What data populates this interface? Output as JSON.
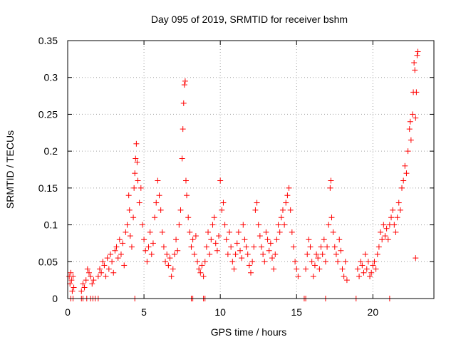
{
  "chart_data": {
    "type": "scatter",
    "title": "Day 095 of 2019, SRMTID for receiver bshm",
    "xlabel": "GPS time / hours",
    "ylabel": "SRMTID / TECUs",
    "xlim": [
      0,
      24
    ],
    "ylim": [
      0,
      0.35
    ],
    "xticks": [
      0,
      5,
      10,
      15,
      20
    ],
    "xtick_labels": [
      "0",
      "5",
      "10",
      "15",
      "20"
    ],
    "yticks": [
      0,
      0.05,
      0.1,
      0.15,
      0.2,
      0.25,
      0.3,
      0.35
    ],
    "ytick_labels": [
      "0",
      "0.05",
      "0.1",
      "0.15",
      "0.2",
      "0.25",
      "0.3",
      "0.35"
    ],
    "grid": true,
    "marker": "+",
    "series": [
      {
        "name": "SRMTID",
        "color": "#ff0000",
        "description_of_trend": "baseline ~0.03-0.08 TECU, peaks near 4.5 h (~0.21), 7.6 h (~0.30), 14.5 h (~0.15), rising sharply after 21 h to ~0.33 at 22.9 h",
        "points": [
          [
            0.1,
            0.03
          ],
          [
            0.15,
            0.02
          ],
          [
            0.2,
            0.035
          ],
          [
            0.25,
            0.025
          ],
          [
            0.3,
            0.01
          ],
          [
            0.35,
            0.03
          ],
          [
            0.4,
            0.015
          ],
          [
            0.9,
            0.01
          ],
          [
            1.0,
            0.02
          ],
          [
            1.1,
            0.015
          ],
          [
            1.2,
            0.025
          ],
          [
            1.3,
            0.04
          ],
          [
            1.4,
            0.035
          ],
          [
            1.5,
            0.03
          ],
          [
            1.6,
            0.02
          ],
          [
            1.7,
            0.025
          ],
          [
            2.0,
            0.03
          ],
          [
            2.1,
            0.04
          ],
          [
            2.2,
            0.035
          ],
          [
            2.3,
            0.05
          ],
          [
            2.4,
            0.045
          ],
          [
            2.5,
            0.03
          ],
          [
            2.6,
            0.055
          ],
          [
            2.7,
            0.04
          ],
          [
            2.8,
            0.06
          ],
          [
            2.9,
            0.05
          ],
          [
            3.0,
            0.035
          ],
          [
            3.1,
            0.065
          ],
          [
            3.2,
            0.07
          ],
          [
            3.3,
            0.055
          ],
          [
            3.4,
            0.08
          ],
          [
            3.5,
            0.06
          ],
          [
            3.6,
            0.075
          ],
          [
            3.7,
            0.045
          ],
          [
            3.8,
            0.09
          ],
          [
            3.9,
            0.1
          ],
          [
            4.0,
            0.14
          ],
          [
            4.05,
            0.12
          ],
          [
            4.1,
            0.085
          ],
          [
            4.2,
            0.07
          ],
          [
            4.3,
            0.11
          ],
          [
            4.35,
            0.15
          ],
          [
            4.4,
            0.17
          ],
          [
            4.45,
            0.19
          ],
          [
            4.5,
            0.21
          ],
          [
            4.55,
            0.185
          ],
          [
            4.6,
            0.16
          ],
          [
            4.7,
            0.13
          ],
          [
            4.8,
            0.15
          ],
          [
            4.9,
            0.1
          ],
          [
            5.0,
            0.08
          ],
          [
            5.1,
            0.065
          ],
          [
            5.2,
            0.05
          ],
          [
            5.3,
            0.07
          ],
          [
            5.4,
            0.09
          ],
          [
            5.5,
            0.06
          ],
          [
            5.6,
            0.075
          ],
          [
            5.7,
            0.11
          ],
          [
            5.8,
            0.13
          ],
          [
            5.9,
            0.16
          ],
          [
            6.0,
            0.14
          ],
          [
            6.1,
            0.12
          ],
          [
            6.2,
            0.09
          ],
          [
            6.3,
            0.07
          ],
          [
            6.4,
            0.05
          ],
          [
            6.5,
            0.06
          ],
          [
            6.6,
            0.045
          ],
          [
            6.7,
            0.055
          ],
          [
            6.8,
            0.03
          ],
          [
            6.9,
            0.04
          ],
          [
            7.0,
            0.06
          ],
          [
            7.1,
            0.08
          ],
          [
            7.2,
            0.065
          ],
          [
            7.3,
            0.1
          ],
          [
            7.4,
            0.12
          ],
          [
            7.5,
            0.19
          ],
          [
            7.55,
            0.23
          ],
          [
            7.6,
            0.265
          ],
          [
            7.65,
            0.29
          ],
          [
            7.7,
            0.295
          ],
          [
            7.75,
            0.16
          ],
          [
            7.8,
            0.14
          ],
          [
            7.9,
            0.11
          ],
          [
            8.0,
            0.09
          ],
          [
            8.1,
            0.07
          ],
          [
            8.2,
            0.08
          ],
          [
            8.3,
            0.06
          ],
          [
            8.4,
            0.085
          ],
          [
            8.5,
            0.05
          ],
          [
            8.6,
            0.04
          ],
          [
            8.7,
            0.035
          ],
          [
            8.8,
            0.045
          ],
          [
            8.9,
            0.03
          ],
          [
            9.0,
            0.05
          ],
          [
            9.1,
            0.07
          ],
          [
            9.2,
            0.09
          ],
          [
            9.3,
            0.06
          ],
          [
            9.4,
            0.08
          ],
          [
            9.5,
            0.1
          ],
          [
            9.6,
            0.11
          ],
          [
            9.7,
            0.075
          ],
          [
            9.8,
            0.065
          ],
          [
            9.9,
            0.085
          ],
          [
            10.0,
            0.16
          ],
          [
            10.1,
            0.12
          ],
          [
            10.2,
            0.13
          ],
          [
            10.3,
            0.1
          ],
          [
            10.4,
            0.08
          ],
          [
            10.5,
            0.06
          ],
          [
            10.6,
            0.09
          ],
          [
            10.7,
            0.07
          ],
          [
            10.8,
            0.05
          ],
          [
            10.9,
            0.04
          ],
          [
            11.0,
            0.06
          ],
          [
            11.1,
            0.075
          ],
          [
            11.2,
            0.09
          ],
          [
            11.3,
            0.065
          ],
          [
            11.4,
            0.055
          ],
          [
            11.5,
            0.1
          ],
          [
            11.6,
            0.08
          ],
          [
            11.7,
            0.07
          ],
          [
            11.8,
            0.06
          ],
          [
            11.9,
            0.045
          ],
          [
            12.0,
            0.035
          ],
          [
            12.1,
            0.05
          ],
          [
            12.2,
            0.07
          ],
          [
            12.3,
            0.12
          ],
          [
            12.4,
            0.13
          ],
          [
            12.5,
            0.1
          ],
          [
            12.6,
            0.085
          ],
          [
            12.7,
            0.07
          ],
          [
            12.8,
            0.06
          ],
          [
            12.9,
            0.05
          ],
          [
            13.0,
            0.09
          ],
          [
            13.1,
            0.08
          ],
          [
            13.2,
            0.065
          ],
          [
            13.3,
            0.075
          ],
          [
            13.4,
            0.055
          ],
          [
            13.5,
            0.04
          ],
          [
            13.6,
            0.06
          ],
          [
            13.7,
            0.08
          ],
          [
            13.8,
            0.1
          ],
          [
            13.9,
            0.09
          ],
          [
            14.0,
            0.11
          ],
          [
            14.1,
            0.12
          ],
          [
            14.2,
            0.1
          ],
          [
            14.3,
            0.13
          ],
          [
            14.4,
            0.14
          ],
          [
            14.5,
            0.15
          ],
          [
            14.6,
            0.12
          ],
          [
            14.7,
            0.09
          ],
          [
            14.8,
            0.07
          ],
          [
            14.9,
            0.05
          ],
          [
            15.0,
            0.04
          ],
          [
            15.1,
            0.03
          ],
          [
            15.6,
            0.04
          ],
          [
            15.7,
            0.06
          ],
          [
            15.8,
            0.08
          ],
          [
            15.9,
            0.07
          ],
          [
            16.0,
            0.05
          ],
          [
            16.1,
            0.03
          ],
          [
            16.2,
            0.045
          ],
          [
            16.3,
            0.06
          ],
          [
            16.4,
            0.055
          ],
          [
            16.5,
            0.04
          ],
          [
            16.6,
            0.07
          ],
          [
            16.7,
            0.06
          ],
          [
            16.8,
            0.08
          ],
          [
            16.9,
            0.05
          ],
          [
            17.0,
            0.07
          ],
          [
            17.1,
            0.1
          ],
          [
            17.2,
            0.15
          ],
          [
            17.25,
            0.16
          ],
          [
            17.3,
            0.11
          ],
          [
            17.4,
            0.09
          ],
          [
            17.5,
            0.07
          ],
          [
            17.6,
            0.06
          ],
          [
            17.7,
            0.05
          ],
          [
            17.8,
            0.08
          ],
          [
            17.9,
            0.065
          ],
          [
            18.0,
            0.04
          ],
          [
            18.1,
            0.03
          ],
          [
            18.2,
            0.05
          ],
          [
            18.3,
            0.025
          ],
          [
            19.0,
            0.04
          ],
          [
            19.1,
            0.03
          ],
          [
            19.2,
            0.05
          ],
          [
            19.3,
            0.045
          ],
          [
            19.4,
            0.035
          ],
          [
            19.5,
            0.06
          ],
          [
            19.6,
            0.04
          ],
          [
            19.7,
            0.05
          ],
          [
            19.8,
            0.03
          ],
          [
            19.9,
            0.035
          ],
          [
            20.0,
            0.045
          ],
          [
            20.1,
            0.05
          ],
          [
            20.2,
            0.04
          ],
          [
            20.3,
            0.06
          ],
          [
            20.4,
            0.07
          ],
          [
            20.5,
            0.09
          ],
          [
            20.6,
            0.08
          ],
          [
            20.7,
            0.1
          ],
          [
            20.8,
            0.085
          ],
          [
            20.9,
            0.095
          ],
          [
            21.0,
            0.08
          ],
          [
            21.1,
            0.1
          ],
          [
            21.2,
            0.11
          ],
          [
            21.3,
            0.12
          ],
          [
            21.4,
            0.1
          ],
          [
            21.5,
            0.09
          ],
          [
            21.6,
            0.11
          ],
          [
            21.7,
            0.13
          ],
          [
            21.8,
            0.12
          ],
          [
            21.9,
            0.15
          ],
          [
            22.0,
            0.16
          ],
          [
            22.1,
            0.18
          ],
          [
            22.2,
            0.17
          ],
          [
            22.3,
            0.2
          ],
          [
            22.4,
            0.23
          ],
          [
            22.45,
            0.24
          ],
          [
            22.5,
            0.215
          ],
          [
            22.6,
            0.25
          ],
          [
            22.65,
            0.28
          ],
          [
            22.7,
            0.32
          ],
          [
            22.75,
            0.31
          ],
          [
            22.8,
            0.245
          ],
          [
            22.85,
            0.28
          ],
          [
            22.9,
            0.33
          ],
          [
            22.95,
            0.335
          ],
          [
            22.8,
            0.055
          ]
        ],
        "zero_points": [
          0.2,
          0.35,
          0.9,
          1.0,
          1.25,
          1.5,
          1.65,
          1.8,
          2.0,
          4.4,
          8.1,
          8.2,
          8.9,
          9.0,
          15.5,
          15.6,
          16.9,
          18.9,
          21.1
        ]
      }
    ]
  }
}
